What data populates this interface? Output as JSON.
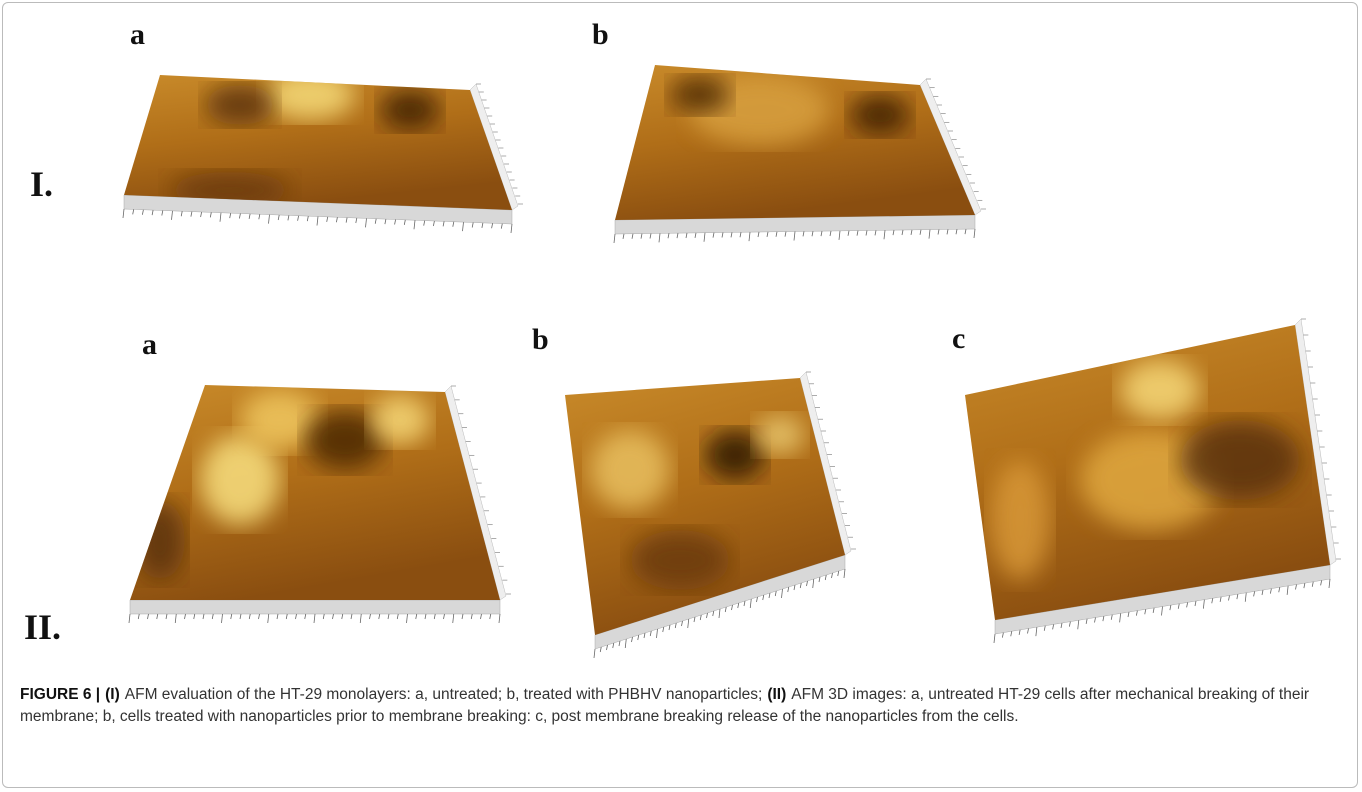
{
  "figure": {
    "rows": [
      {
        "label": "I.",
        "panels": [
          "a",
          "b"
        ]
      },
      {
        "label": "II.",
        "panels": [
          "a",
          "b",
          "c"
        ]
      }
    ],
    "caption": {
      "label": "FIGURE 6 |",
      "parts": [
        "(I)",
        "AFM evaluation of the HT-29 monolayers: a, untreated; b, treated with PHBHV nanoparticles;",
        "(II)",
        "AFM 3D images: a, untreated HT-29 cells after mechanical breaking of their membrane; b, cells treated with nanoparticles prior to membrane breaking: c, post membrane breaking release of the nanoparticles from the cells."
      ]
    }
  }
}
